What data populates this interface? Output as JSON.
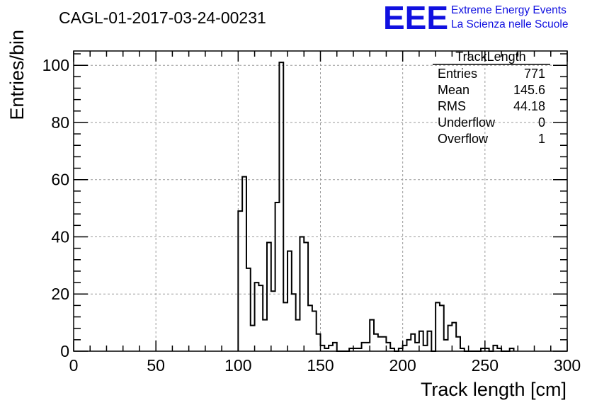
{
  "header": {
    "run_title": "CAGL-01-2017-03-24-00231",
    "logo_text": "EEE",
    "logo_line1": "Extreme Energy Events",
    "logo_line2": "La Scienza nelle Scuole",
    "logo_color": "#1010e0"
  },
  "stats_box": {
    "title": "TrackLength",
    "rows": [
      {
        "label": "Entries",
        "value": "771"
      },
      {
        "label": "Mean",
        "value": "145.6"
      },
      {
        "label": "RMS",
        "value": "44.18"
      },
      {
        "label": "Underflow",
        "value": "0"
      },
      {
        "label": "Overflow",
        "value": "1"
      }
    ]
  },
  "chart_data": {
    "type": "histogram",
    "xlabel": "Track length [cm]",
    "ylabel": "Entries/bin",
    "xlim": [
      0,
      300
    ],
    "ylim": [
      0,
      105
    ],
    "xticks": [
      0,
      50,
      100,
      150,
      200,
      250,
      300
    ],
    "yticks": [
      0,
      20,
      40,
      60,
      80,
      100
    ],
    "grid": true,
    "bin_width": 2.5,
    "bins": [
      {
        "x": 100,
        "y": 49
      },
      {
        "x": 102.5,
        "y": 61
      },
      {
        "x": 105,
        "y": 29
      },
      {
        "x": 107.5,
        "y": 9
      },
      {
        "x": 110,
        "y": 24
      },
      {
        "x": 112.5,
        "y": 23
      },
      {
        "x": 115,
        "y": 11
      },
      {
        "x": 117.5,
        "y": 38
      },
      {
        "x": 120,
        "y": 21
      },
      {
        "x": 122.5,
        "y": 52
      },
      {
        "x": 125,
        "y": 101
      },
      {
        "x": 127.5,
        "y": 17
      },
      {
        "x": 130,
        "y": 35
      },
      {
        "x": 132.5,
        "y": 20
      },
      {
        "x": 135,
        "y": 11
      },
      {
        "x": 137.5,
        "y": 40
      },
      {
        "x": 140,
        "y": 38
      },
      {
        "x": 142.5,
        "y": 16
      },
      {
        "x": 145,
        "y": 14
      },
      {
        "x": 147.5,
        "y": 6
      },
      {
        "x": 150,
        "y": 2
      },
      {
        "x": 152.5,
        "y": 1
      },
      {
        "x": 155,
        "y": 2
      },
      {
        "x": 157.5,
        "y": 3
      },
      {
        "x": 160,
        "y": 0
      },
      {
        "x": 162.5,
        "y": 0
      },
      {
        "x": 165,
        "y": 0
      },
      {
        "x": 167.5,
        "y": 1
      },
      {
        "x": 170,
        "y": 1
      },
      {
        "x": 172.5,
        "y": 1
      },
      {
        "x": 175,
        "y": 3
      },
      {
        "x": 177.5,
        "y": 3
      },
      {
        "x": 180,
        "y": 11
      },
      {
        "x": 182.5,
        "y": 6
      },
      {
        "x": 185,
        "y": 5
      },
      {
        "x": 187.5,
        "y": 5
      },
      {
        "x": 190,
        "y": 3
      },
      {
        "x": 192.5,
        "y": 1
      },
      {
        "x": 195,
        "y": 0
      },
      {
        "x": 197.5,
        "y": 1
      },
      {
        "x": 200,
        "y": 2
      },
      {
        "x": 202.5,
        "y": 4
      },
      {
        "x": 205,
        "y": 6
      },
      {
        "x": 207.5,
        "y": 3
      },
      {
        "x": 210,
        "y": 7
      },
      {
        "x": 212.5,
        "y": 2
      },
      {
        "x": 215,
        "y": 7
      },
      {
        "x": 217.5,
        "y": 0
      },
      {
        "x": 220,
        "y": 17
      },
      {
        "x": 222.5,
        "y": 16
      },
      {
        "x": 225,
        "y": 4
      },
      {
        "x": 227.5,
        "y": 9
      },
      {
        "x": 230,
        "y": 10
      },
      {
        "x": 232.5,
        "y": 5
      },
      {
        "x": 235,
        "y": 1
      },
      {
        "x": 237.5,
        "y": 0
      },
      {
        "x": 240,
        "y": 0
      },
      {
        "x": 242.5,
        "y": 0
      },
      {
        "x": 245,
        "y": 0
      },
      {
        "x": 247.5,
        "y": 1
      },
      {
        "x": 250,
        "y": 1
      },
      {
        "x": 252.5,
        "y": 0
      },
      {
        "x": 255,
        "y": 2
      },
      {
        "x": 257.5,
        "y": 1
      },
      {
        "x": 260,
        "y": 0
      },
      {
        "x": 262.5,
        "y": 0
      },
      {
        "x": 265,
        "y": 1
      }
    ]
  }
}
